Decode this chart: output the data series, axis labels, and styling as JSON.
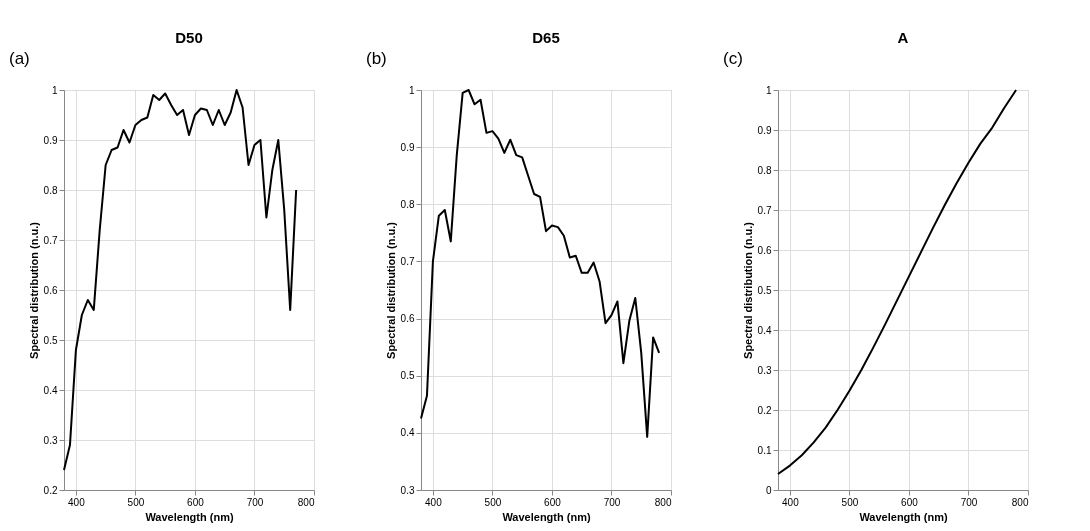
{
  "chart_data": [
    {
      "type": "line",
      "title": "D50",
      "xlabel": "Wavelength (nm)",
      "ylabel": "Spectral distribution (n.u.)",
      "annotations": [
        "(a)"
      ],
      "x": [
        380,
        390,
        400,
        410,
        420,
        430,
        440,
        450,
        460,
        470,
        480,
        490,
        500,
        510,
        520,
        530,
        540,
        550,
        560,
        570,
        580,
        590,
        600,
        610,
        620,
        630,
        640,
        650,
        660,
        670,
        680,
        690,
        700,
        710,
        720,
        730,
        740,
        750,
        760,
        770
      ],
      "series": [
        {
          "color": "#000000",
          "values": [
            0.24,
            0.29,
            0.48,
            0.55,
            0.58,
            0.56,
            0.72,
            0.85,
            0.88,
            0.885,
            0.92,
            0.895,
            0.93,
            0.94,
            0.945,
            0.99,
            0.98,
            0.993,
            0.97,
            0.95,
            0.96,
            0.91,
            0.95,
            0.963,
            0.96,
            0.93,
            0.96,
            0.93,
            0.955,
            1.0,
            0.965,
            0.85,
            0.89,
            0.9,
            0.745,
            0.84,
            0.9,
            0.76,
            0.56,
            0.8
          ]
        }
      ],
      "xlim": [
        380,
        800
      ],
      "xticks": [
        400,
        500,
        600,
        700,
        800
      ],
      "ylim": [
        0.2,
        1
      ],
      "yticks": [
        0.2,
        0.3,
        0.4,
        0.5,
        0.6,
        0.7,
        0.8,
        0.9,
        1
      ],
      "grid": true
    },
    {
      "type": "line",
      "title": "D65",
      "xlabel": "Wavelength (nm)",
      "ylabel": "Spectral distribution (n.u.)",
      "annotations": [
        "(b)"
      ],
      "x": [
        380,
        390,
        400,
        410,
        420,
        430,
        440,
        450,
        460,
        470,
        480,
        490,
        500,
        510,
        520,
        530,
        540,
        550,
        560,
        570,
        580,
        590,
        600,
        610,
        620,
        630,
        640,
        650,
        660,
        670,
        680,
        690,
        700,
        710,
        720,
        730,
        740,
        750,
        760,
        770,
        780
      ],
      "series": [
        {
          "color": "#000000",
          "values": [
            0.425,
            0.465,
            0.7,
            0.78,
            0.79,
            0.735,
            0.885,
            0.995,
            1.0,
            0.975,
            0.983,
            0.925,
            0.928,
            0.915,
            0.89,
            0.913,
            0.886,
            0.882,
            0.85,
            0.818,
            0.813,
            0.753,
            0.763,
            0.76,
            0.745,
            0.707,
            0.71,
            0.68,
            0.68,
            0.698,
            0.665,
            0.592,
            0.606,
            0.63,
            0.522,
            0.596,
            0.636,
            0.54,
            0.393,
            0.567,
            0.54
          ]
        }
      ],
      "xlim": [
        380,
        800
      ],
      "xticks": [
        400,
        500,
        600,
        700,
        800
      ],
      "ylim": [
        0.3,
        1
      ],
      "yticks": [
        0.3,
        0.4,
        0.5,
        0.6,
        0.7,
        0.8,
        0.9,
        1
      ],
      "grid": true
    },
    {
      "type": "line",
      "title": "A",
      "xlabel": "Wavelength (nm)",
      "ylabel": "Spectral distribution (n.u.)",
      "annotations": [
        "(c)"
      ],
      "x": [
        380,
        400,
        420,
        440,
        460,
        480,
        500,
        520,
        540,
        560,
        580,
        600,
        620,
        640,
        660,
        680,
        700,
        720,
        740,
        760,
        780
      ],
      "series": [
        {
          "color": "#000000",
          "values": [
            0.04,
            0.061,
            0.087,
            0.119,
            0.156,
            0.2,
            0.248,
            0.3,
            0.356,
            0.414,
            0.474,
            0.534,
            0.594,
            0.654,
            0.712,
            0.767,
            0.818,
            0.866,
            0.906,
            0.955,
            1.0
          ]
        }
      ],
      "xlim": [
        380,
        800
      ],
      "xticks": [
        400,
        500,
        600,
        700,
        800
      ],
      "ylim": [
        0,
        1
      ],
      "yticks": [
        0,
        0.1,
        0.2,
        0.3,
        0.4,
        0.5,
        0.6,
        0.7,
        0.8,
        0.9,
        1
      ],
      "grid": true
    }
  ]
}
